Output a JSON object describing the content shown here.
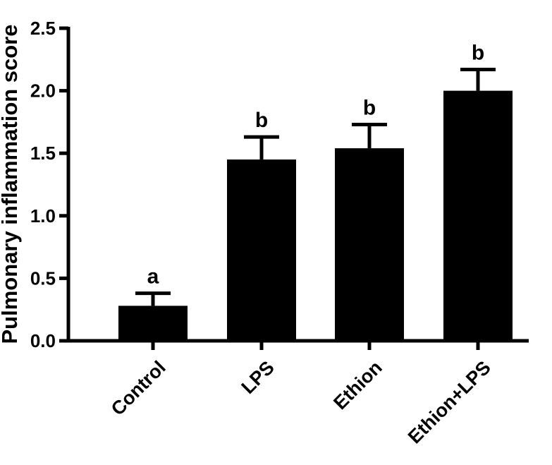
{
  "chart_data": {
    "type": "bar",
    "ylabel": "Pulmonary inflammation score",
    "xlabel": "",
    "ylim": [
      0,
      2.5
    ],
    "yticks": [
      "0.0",
      "0.5",
      "1.0",
      "1.5",
      "2.0",
      "2.5"
    ],
    "grid": false,
    "categories": [
      "Control",
      "LPS",
      "Ethion",
      "Ethion+LPS"
    ],
    "values": [
      0.28,
      1.45,
      1.54,
      2.0
    ],
    "errors": [
      0.1,
      0.18,
      0.19,
      0.17
    ],
    "significance": [
      "a",
      "b",
      "b",
      "b"
    ],
    "bar_color": "#000000"
  }
}
